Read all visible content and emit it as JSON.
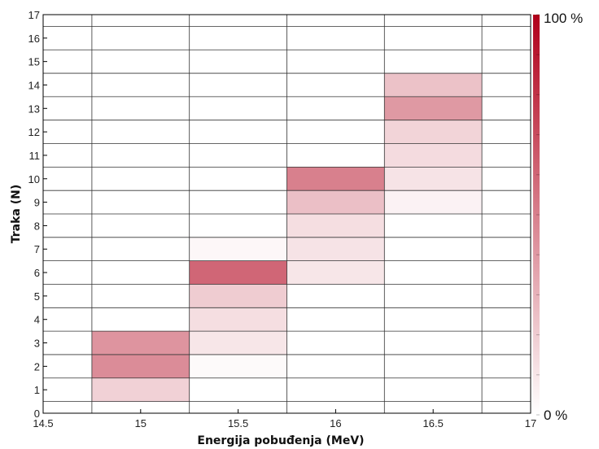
{
  "chart_data": {
    "type": "heatmap",
    "xlabel": "Energija pobuđenja (MeV)",
    "ylabel": "Traka (N)",
    "xlim": [
      14.5,
      17
    ],
    "ylim": [
      0,
      17
    ],
    "x_ticks": [
      "14.5",
      "15",
      "15.5",
      "16",
      "16.5",
      "17"
    ],
    "y_ticks": [
      "0",
      "1",
      "2",
      "3",
      "4",
      "5",
      "6",
      "7",
      "8",
      "9",
      "10",
      "11",
      "12",
      "13",
      "14",
      "15",
      "16",
      "17"
    ],
    "colorbar": {
      "min_label": "0 %",
      "max_label": "100 %",
      "low_color": "#ffffff",
      "high_color": "#b0001a"
    },
    "bin_width": 0.5,
    "cells": [
      {
        "x": 15.0,
        "y": 1,
        "value": 18
      },
      {
        "x": 15.0,
        "y": 2,
        "value": 45
      },
      {
        "x": 15.0,
        "y": 3,
        "value": 42
      },
      {
        "x": 15.5,
        "y": 2,
        "value": 2
      },
      {
        "x": 15.5,
        "y": 3,
        "value": 10
      },
      {
        "x": 15.5,
        "y": 4,
        "value": 13
      },
      {
        "x": 15.5,
        "y": 5,
        "value": 20
      },
      {
        "x": 15.5,
        "y": 6,
        "value": 60
      },
      {
        "x": 15.5,
        "y": 7,
        "value": 3
      },
      {
        "x": 16.0,
        "y": 6,
        "value": 10
      },
      {
        "x": 16.0,
        "y": 7,
        "value": 11
      },
      {
        "x": 16.0,
        "y": 8,
        "value": 13
      },
      {
        "x": 16.0,
        "y": 9,
        "value": 25
      },
      {
        "x": 16.0,
        "y": 10,
        "value": 50
      },
      {
        "x": 16.5,
        "y": 9,
        "value": 5
      },
      {
        "x": 16.5,
        "y": 10,
        "value": 11
      },
      {
        "x": 16.5,
        "y": 11,
        "value": 14
      },
      {
        "x": 16.5,
        "y": 12,
        "value": 17
      },
      {
        "x": 16.5,
        "y": 13,
        "value": 40
      },
      {
        "x": 16.5,
        "y": 14,
        "value": 24
      }
    ]
  }
}
